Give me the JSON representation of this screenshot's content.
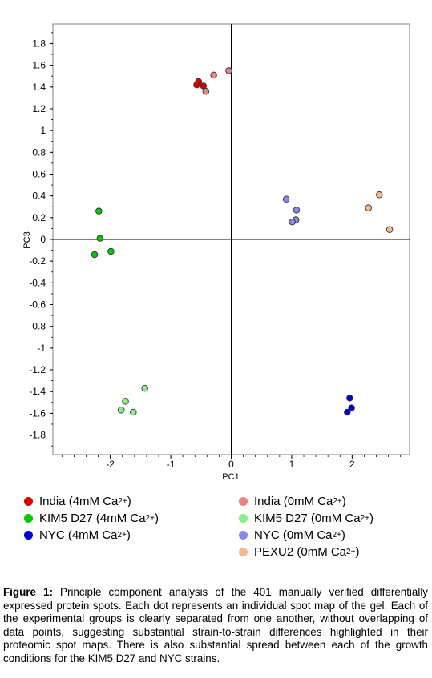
{
  "chart_data": {
    "type": "scatter",
    "xlabel": "PC1",
    "ylabel": "PC3",
    "xlim": [
      -2.95,
      2.95
    ],
    "ylim": [
      -1.98,
      1.98
    ],
    "x_ticks": [
      -2,
      -1,
      0,
      1,
      2
    ],
    "x_tick_labels": [
      "-2",
      "-1",
      "0",
      "1",
      "2"
    ],
    "y_ticks": [
      1.8,
      1.6,
      1.4,
      1.2,
      1,
      0.8,
      0.6,
      0.4,
      0.2,
      0,
      -0.2,
      -0.4,
      -0.6,
      -0.8,
      -1,
      -1.2,
      -1.4,
      -1.6,
      -1.8
    ],
    "y_tick_labels": [
      "1.8",
      "1.6",
      "1.4",
      "1.2",
      "1",
      "0.8",
      "0.6",
      "0.4",
      "0.2",
      "0",
      "-0.2",
      "-0.4",
      "-0.6",
      "-0.8",
      "-1",
      "-1.2",
      "-1.4",
      "-1.6",
      "-1.8"
    ],
    "grid": false,
    "series": [
      {
        "color": "#e00000",
        "points": [
          [
            -0.54,
            1.45
          ],
          [
            -0.57,
            1.42
          ],
          [
            -0.46,
            1.41
          ]
        ]
      },
      {
        "color": "#f08080",
        "points": [
          [
            -0.04,
            1.55
          ],
          [
            -0.29,
            1.51
          ],
          [
            -0.42,
            1.36
          ]
        ]
      },
      {
        "color": "#00cc00",
        "points": [
          [
            -2.19,
            0.26
          ],
          [
            -2.17,
            0.01
          ],
          [
            -1.99,
            -0.11
          ],
          [
            -2.26,
            -0.14
          ]
        ]
      },
      {
        "color": "#88ee88",
        "points": [
          [
            -1.43,
            -1.37
          ],
          [
            -1.75,
            -1.49
          ],
          [
            -1.82,
            -1.57
          ],
          [
            -1.62,
            -1.59
          ]
        ]
      },
      {
        "color": "#0000dd",
        "points": [
          [
            1.96,
            -1.46
          ],
          [
            1.99,
            -1.55
          ],
          [
            1.92,
            -1.59
          ]
        ]
      },
      {
        "color": "#8888ee",
        "points": [
          [
            0.91,
            0.37
          ],
          [
            1.08,
            0.27
          ],
          [
            1.07,
            0.18
          ],
          [
            1.01,
            0.16
          ]
        ]
      },
      {
        "color": "#f5b888",
        "points": [
          [
            2.45,
            0.41
          ],
          [
            2.27,
            0.29
          ],
          [
            2.62,
            0.09
          ]
        ]
      }
    ]
  },
  "legend": [
    {
      "label": "India (4mM Ca",
      "sup": "2+",
      "close": ")",
      "color": "#e00000"
    },
    {
      "label": "India (0mM Ca",
      "sup": "2+",
      "close": ")",
      "color": "#f08080"
    },
    {
      "label": "KIM5 D27 (4mM Ca",
      "sup": "2+",
      "close": ")",
      "color": "#00cc00"
    },
    {
      "label": "KIM5 D27 (0mM Ca",
      "sup": "2+",
      "close": ")",
      "color": "#88ee88"
    },
    {
      "label": "NYC (4mM Ca",
      "sup": "2+",
      "close": ")",
      "color": "#0000dd"
    },
    {
      "label": "NYC (0mM Ca",
      "sup": "2+",
      "close": ")",
      "color": "#8888ee"
    },
    {
      "label": "PEXU2 (0mM Ca",
      "sup": "2+",
      "close": ")",
      "color": "#f5b888"
    }
  ],
  "caption": {
    "label": "Figure 1:",
    "text": " Principle component analysis of the 401 manually verified differentially expressed protein spots. Each dot represents an individual spot map of the gel. Each of the experimental groups is clearly separated from one another, without overlapping of data points, suggesting substantial strain-to-strain differences highlighted in their proteomic spot maps. There is also substantial spread between each of the growth conditions for the KIM5 D27 and NYC strains."
  }
}
